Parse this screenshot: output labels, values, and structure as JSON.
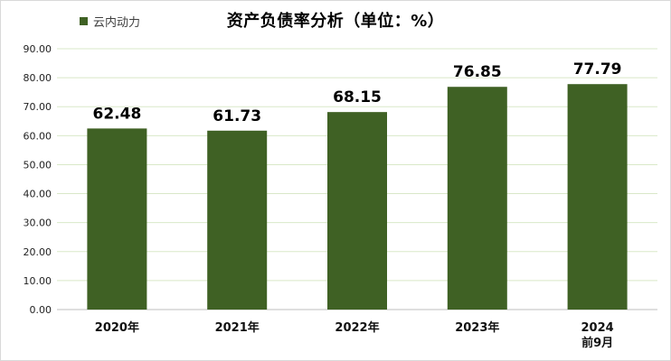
{
  "chart_data": {
    "type": "bar",
    "title": "资产负债率分析（单位：%）",
    "categories": [
      "2020年",
      "2021年",
      "2022年",
      "2023年",
      "2024\n前9月"
    ],
    "series": [
      {
        "name": "云内动力",
        "values": [
          62.48,
          61.73,
          68.15,
          76.85,
          77.79
        ]
      }
    ],
    "data_labels": [
      "62.48",
      "61.73",
      "68.15",
      "76.85",
      "77.79"
    ],
    "y_ticks": [
      "0.00",
      "10.00",
      "20.00",
      "30.00",
      "40.00",
      "50.00",
      "60.00",
      "70.00",
      "80.00",
      "90.00"
    ],
    "ylim": [
      0,
      90
    ],
    "grid": true,
    "legend_position": "top-left",
    "bar_color": "#3f6124",
    "grid_color": "#d9e8c8"
  }
}
